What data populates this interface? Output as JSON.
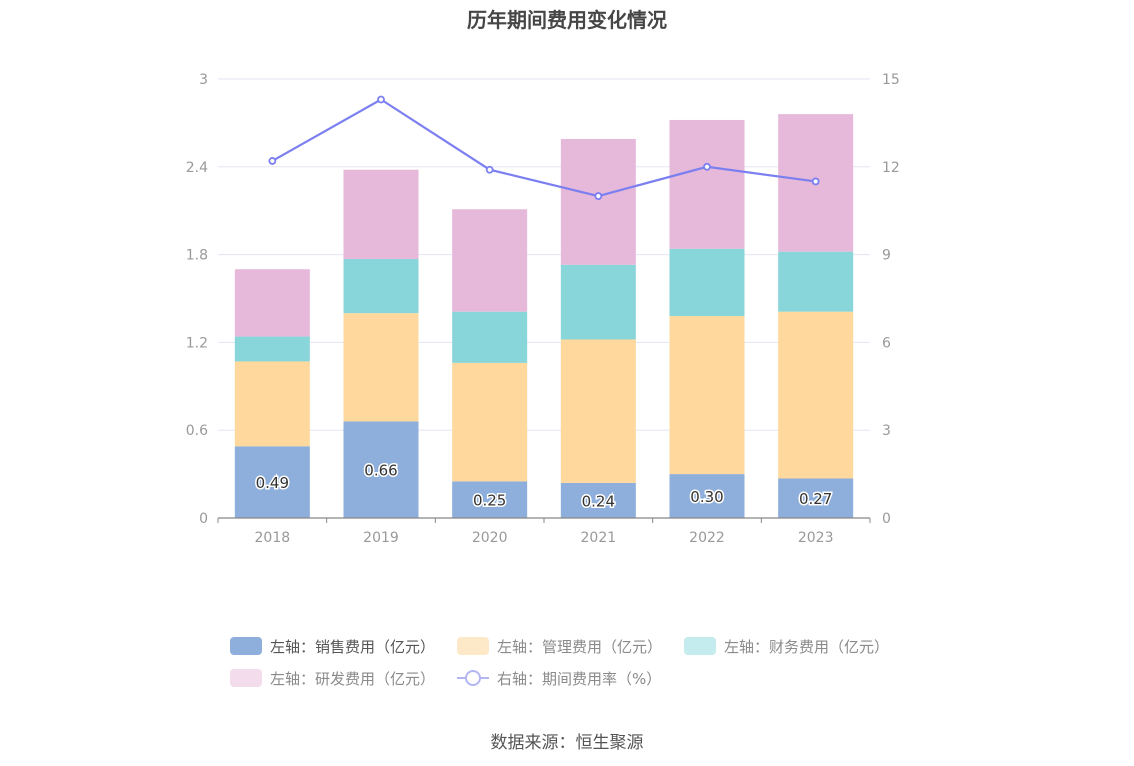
{
  "chart_data": {
    "type": "bar",
    "title": "历年期间费用变化情况",
    "categories": [
      "2018",
      "2019",
      "2020",
      "2021",
      "2022",
      "2023"
    ],
    "series": [
      {
        "name": "左轴：销售费用（亿元）",
        "axis": "left",
        "color": "#8eaedb",
        "values": [
          0.49,
          0.66,
          0.25,
          0.24,
          0.3,
          0.27
        ],
        "labels": [
          "0.49",
          "0.66",
          "0.25",
          "0.24",
          "0.30",
          "0.27"
        ]
      },
      {
        "name": "左轴：管理费用（亿元）",
        "axis": "left",
        "color": "#fed89c",
        "values": [
          0.58,
          0.74,
          0.81,
          0.98,
          1.08,
          1.14
        ]
      },
      {
        "name": "左轴：财务费用（亿元）",
        "axis": "left",
        "color": "#88d6da",
        "values": [
          0.17,
          0.37,
          0.35,
          0.51,
          0.46,
          0.41
        ]
      },
      {
        "name": "左轴：研发费用（亿元）",
        "axis": "left",
        "color": "#e6b9da",
        "values": [
          0.46,
          0.61,
          0.7,
          0.86,
          0.88,
          0.94
        ]
      },
      {
        "name": "右轴：期间费用率（%）",
        "axis": "right",
        "type": "line",
        "color": "#7b7ff0",
        "values": [
          12.2,
          14.3,
          11.9,
          11.0,
          12.0,
          11.5
        ]
      }
    ],
    "left_axis": {
      "ylim": [
        0,
        3
      ],
      "ticks": [
        "0",
        "0.6",
        "1.2",
        "1.8",
        "2.4",
        "3"
      ]
    },
    "right_axis": {
      "ylim": [
        0,
        15
      ],
      "ticks": [
        "0",
        "3",
        "6",
        "9",
        "12",
        "15"
      ]
    },
    "grid": true,
    "legend_position": "bottom"
  },
  "legend": {
    "items": [
      {
        "label": "左轴：销售费用（亿元）",
        "color": "#8eaedb"
      },
      {
        "label": "左轴：管理费用（亿元）",
        "color": "#fde8c8"
      },
      {
        "label": "左轴：财务费用（亿元）",
        "color": "#c4ecee"
      },
      {
        "label": "左轴：研发费用（亿元）",
        "color": "#f3dcec"
      },
      {
        "label": "右轴：期间费用率（%）",
        "color": "#b3b6f2"
      }
    ]
  },
  "source": "数据来源：恒生聚源"
}
